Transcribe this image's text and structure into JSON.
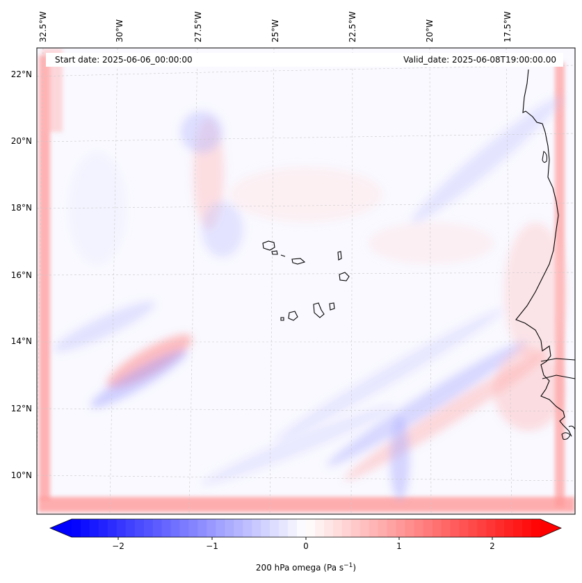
{
  "map": {
    "start_date": "Start date: 2025-06-06_00:00:00",
    "valid_date": "Valid_date: 2025-06-08T19:00:00.00",
    "longitude_labels": [
      "32.5°W",
      "30°W",
      "27.5°W",
      "25°W",
      "22.5°W",
      "20°W",
      "17.5°W"
    ],
    "latitude_labels": [
      "22°N",
      "20°N",
      "18°N",
      "16°N",
      "14°N",
      "12°N",
      "10°N"
    ],
    "gridlines": true
  },
  "colorbar": {
    "label": "200 hPa omega (Pa s",
    "label_superscript": "−1",
    "label_suffix": ")",
    "ticks": [
      "−2",
      "−1",
      "0",
      "1",
      "2"
    ],
    "range": [
      -2.6,
      2.6
    ],
    "colors": {
      "negative": "#0000ff",
      "zero": "#ffffff",
      "positive": "#ff0000"
    }
  }
}
